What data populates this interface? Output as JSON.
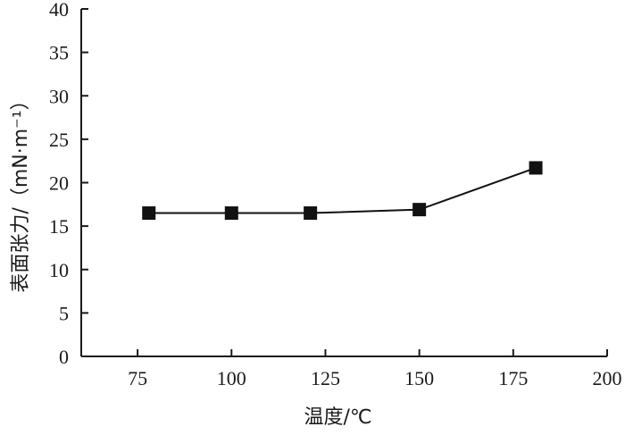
{
  "chart_data": {
    "type": "line",
    "title": "",
    "xlabel": "温度/℃",
    "ylabel": "表面张力/（mN·m⁻¹）",
    "xlim": [
      60,
      200
    ],
    "ylim": [
      0,
      40
    ],
    "x_ticks": [
      75,
      100,
      125,
      150,
      175,
      200
    ],
    "y_ticks": [
      0,
      5,
      10,
      15,
      20,
      25,
      30,
      35,
      40
    ],
    "grid": false,
    "legend": "none",
    "series": [
      {
        "marker": "square",
        "color": "#111111",
        "points": [
          {
            "x": 78,
            "y": 16.5
          },
          {
            "x": 100,
            "y": 16.5
          },
          {
            "x": 121,
            "y": 16.5
          },
          {
            "x": 150,
            "y": 16.9
          },
          {
            "x": 181,
            "y": 21.7
          }
        ]
      }
    ]
  }
}
